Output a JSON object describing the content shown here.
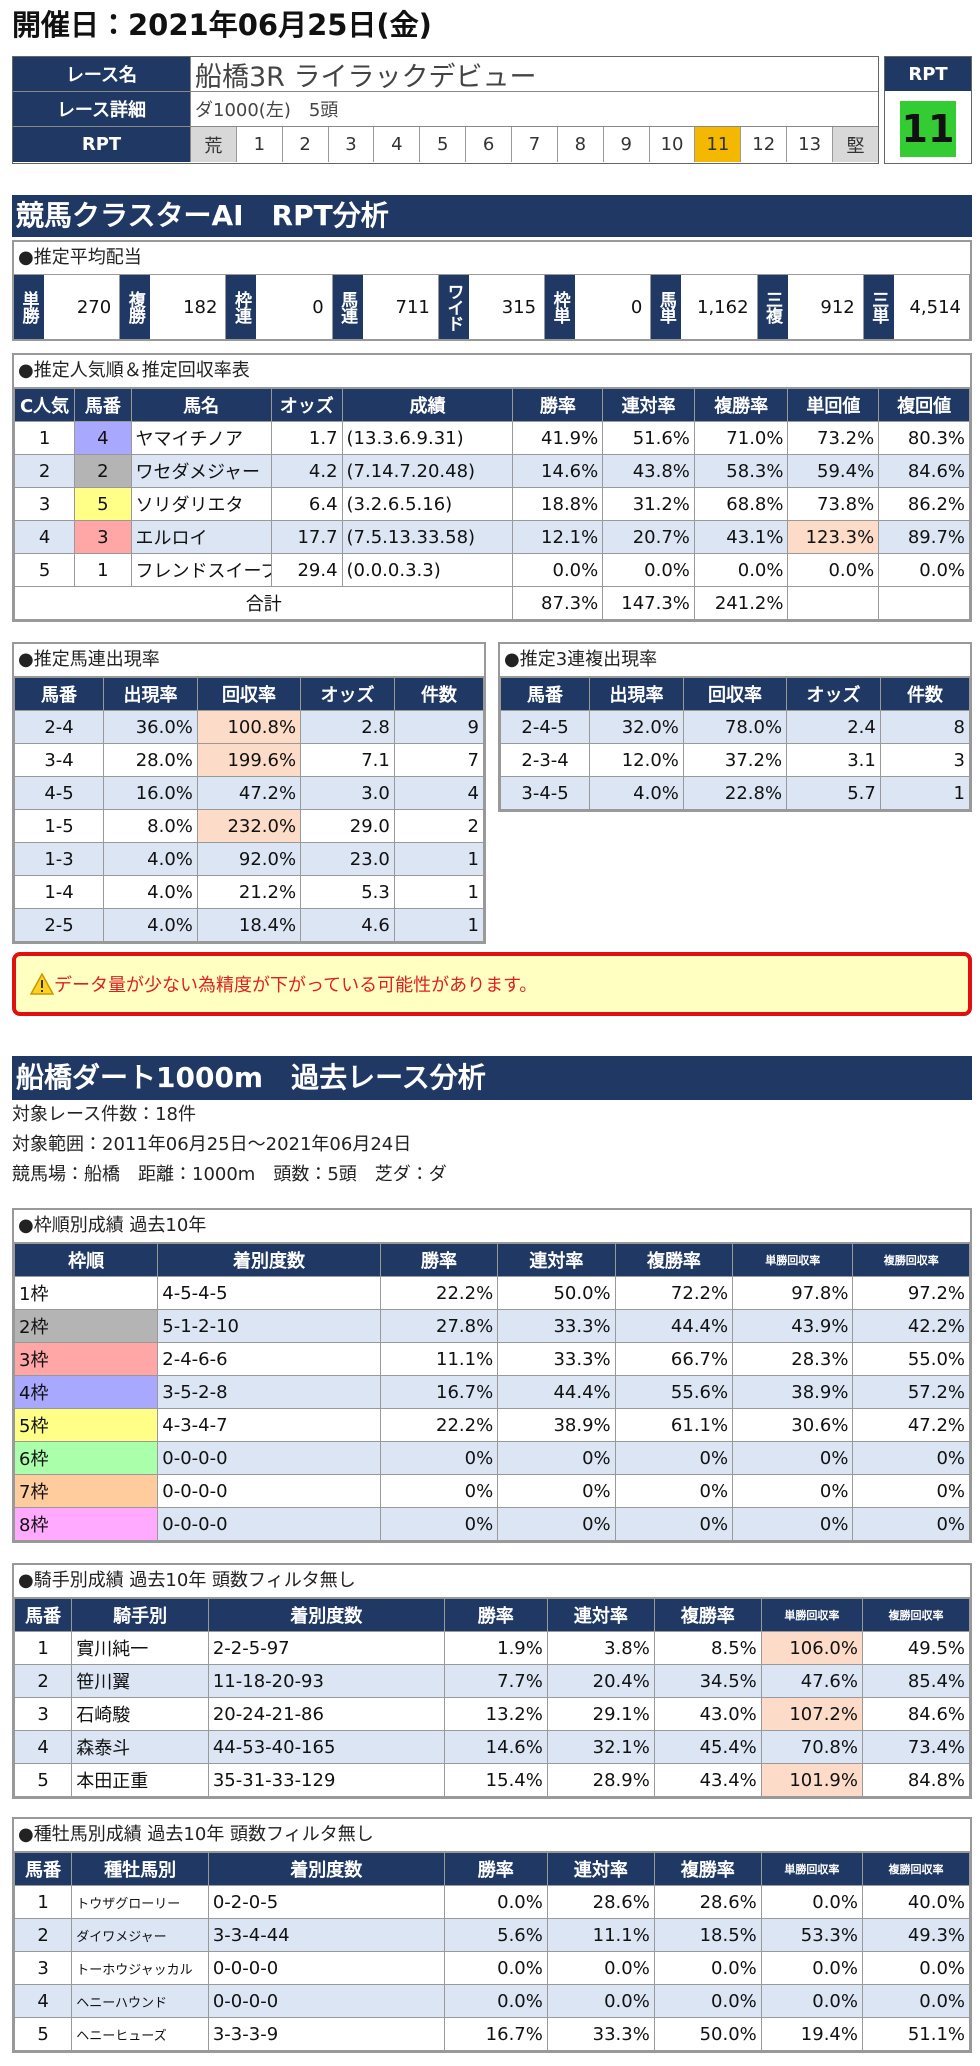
{
  "header": {
    "date": "開催日：2021年06月25日(金)"
  },
  "race": {
    "labels": [
      "レース名",
      "レース詳細",
      "RPT"
    ],
    "name": "船橋3R ライラックデビュー",
    "detail": "ダ1000(左)　5頭",
    "rpt_scale": [
      "荒",
      "1",
      "2",
      "3",
      "4",
      "5",
      "6",
      "7",
      "8",
      "9",
      "10",
      "11",
      "12",
      "13",
      "堅"
    ],
    "rpt_title": "RPT",
    "rpt_value": "11"
  },
  "ai": {
    "title": "競馬クラスターAI　RPT分析",
    "payout": {
      "heading": "●推定平均配当",
      "items": [
        {
          "label": "単勝",
          "value": "270"
        },
        {
          "label": "複勝",
          "value": "182"
        },
        {
          "label": "枠連",
          "value": "0"
        },
        {
          "label": "馬連",
          "value": "711"
        },
        {
          "label": "ワイド",
          "value": "315"
        },
        {
          "label": "枠単",
          "value": "0"
        },
        {
          "label": "馬単",
          "value": "1,162"
        },
        {
          "label": "三複",
          "value": "912"
        },
        {
          "label": "三単",
          "value": "4,514"
        }
      ]
    },
    "popularity": {
      "heading": "●推定人気順＆推定回収率表",
      "columns": [
        "C人気",
        "馬番",
        "馬名",
        "オッズ",
        "成績",
        "勝率",
        "連対率",
        "複勝率",
        "単回値",
        "複回値"
      ],
      "rows": [
        [
          "1",
          "4",
          "ヤマイチノア",
          "1.7",
          "(13.3.6.9.31)",
          "41.9%",
          "51.6%",
          "71.0%",
          "73.2%",
          "80.3%"
        ],
        [
          "2",
          "2",
          "ワセダメジャー",
          "4.2",
          "(7.14.7.20.48)",
          "14.6%",
          "43.8%",
          "58.3%",
          "59.4%",
          "84.6%"
        ],
        [
          "3",
          "5",
          "ソリダリエタ",
          "6.4",
          "(3.2.6.5.16)",
          "18.8%",
          "31.2%",
          "68.8%",
          "73.8%",
          "86.2%"
        ],
        [
          "4",
          "3",
          "エルロイ",
          "17.7",
          "(7.5.13.33.58)",
          "12.1%",
          "20.7%",
          "43.1%",
          "123.3%",
          "89.7%"
        ],
        [
          "5",
          "1",
          "フレンドスイープ",
          "29.4",
          "(0.0.0.3.3)",
          "0.0%",
          "0.0%",
          "0.0%",
          "0.0%",
          "0.0%"
        ]
      ],
      "total": {
        "label": "合計",
        "values": [
          "87.3%",
          "147.3%",
          "241.2%"
        ]
      }
    },
    "umaren": {
      "heading": "●推定馬連出現率",
      "columns": [
        "馬番",
        "出現率",
        "回収率",
        "オッズ",
        "件数"
      ],
      "rows": [
        [
          "2-4",
          "36.0%",
          "100.8%",
          "2.8",
          "9"
        ],
        [
          "3-4",
          "28.0%",
          "199.6%",
          "7.1",
          "7"
        ],
        [
          "4-5",
          "16.0%",
          "47.2%",
          "3.0",
          "4"
        ],
        [
          "1-5",
          "8.0%",
          "232.0%",
          "29.0",
          "2"
        ],
        [
          "1-3",
          "4.0%",
          "92.0%",
          "23.0",
          "1"
        ],
        [
          "1-4",
          "4.0%",
          "21.2%",
          "5.3",
          "1"
        ],
        [
          "2-5",
          "4.0%",
          "18.4%",
          "4.6",
          "1"
        ]
      ]
    },
    "sanrenpuku": {
      "heading": "●推定3連複出現率",
      "columns": [
        "馬番",
        "出現率",
        "回収率",
        "オッズ",
        "件数"
      ],
      "rows": [
        [
          "2-4-5",
          "32.0%",
          "78.0%",
          "2.4",
          "8"
        ],
        [
          "2-3-4",
          "12.0%",
          "37.2%",
          "3.1",
          "3"
        ],
        [
          "3-4-5",
          "4.0%",
          "22.8%",
          "5.7",
          "1"
        ]
      ]
    },
    "warning": "データ量が少ない為精度が下がっている可能性があります。"
  },
  "past": {
    "title": "船橋ダート1000m　過去レース分析",
    "info": [
      "対象レース件数：18件",
      "対象範囲：2011年06月25日～2021年06月24日",
      "競馬場：船橋　距離：1000m　頭数：5頭　芝ダ：ダ"
    ],
    "frame": {
      "heading": "●枠順別成績 過去10年",
      "columns": [
        "枠順",
        "着別度数",
        "勝率",
        "連対率",
        "複勝率",
        "単勝回収率",
        "複勝回収率"
      ],
      "rows": [
        [
          "1枠",
          "4-5-4-5",
          "22.2%",
          "50.0%",
          "72.2%",
          "97.8%",
          "97.2%"
        ],
        [
          "2枠",
          "5-1-2-10",
          "27.8%",
          "33.3%",
          "44.4%",
          "43.9%",
          "42.2%"
        ],
        [
          "3枠",
          "2-4-6-6",
          "11.1%",
          "33.3%",
          "66.7%",
          "28.3%",
          "55.0%"
        ],
        [
          "4枠",
          "3-5-2-8",
          "16.7%",
          "44.4%",
          "55.6%",
          "38.9%",
          "57.2%"
        ],
        [
          "5枠",
          "4-3-4-7",
          "22.2%",
          "38.9%",
          "61.1%",
          "30.6%",
          "47.2%"
        ],
        [
          "6枠",
          "0-0-0-0",
          "0%",
          "0%",
          "0%",
          "0%",
          "0%"
        ],
        [
          "7枠",
          "0-0-0-0",
          "0%",
          "0%",
          "0%",
          "0%",
          "0%"
        ],
        [
          "8枠",
          "0-0-0-0",
          "0%",
          "0%",
          "0%",
          "0%",
          "0%"
        ]
      ]
    },
    "jockey": {
      "heading": "●騎手別成績 過去10年 頭数フィルタ無し",
      "columns": [
        "馬番",
        "騎手別",
        "着別度数",
        "勝率",
        "連対率",
        "複勝率",
        "単勝回収率",
        "複勝回収率"
      ],
      "rows": [
        [
          "1",
          "實川純一",
          "2-2-5-97",
          "1.9%",
          "3.8%",
          "8.5%",
          "106.0%",
          "49.5%"
        ],
        [
          "2",
          "笹川翼",
          "11-18-20-93",
          "7.7%",
          "20.4%",
          "34.5%",
          "47.6%",
          "85.4%"
        ],
        [
          "3",
          "石崎駿",
          "20-24-21-86",
          "13.2%",
          "29.1%",
          "43.0%",
          "107.2%",
          "84.6%"
        ],
        [
          "4",
          "森泰斗",
          "44-53-40-165",
          "14.6%",
          "32.1%",
          "45.4%",
          "70.8%",
          "73.4%"
        ],
        [
          "5",
          "本田正重",
          "35-31-33-129",
          "15.4%",
          "28.9%",
          "43.4%",
          "101.9%",
          "84.8%"
        ]
      ]
    },
    "sire": {
      "heading": "●種牡馬別成績 過去10年 頭数フィルタ無し",
      "columns": [
        "馬番",
        "種牡馬別",
        "着別度数",
        "勝率",
        "連対率",
        "複勝率",
        "単勝回収率",
        "複勝回収率"
      ],
      "rows": [
        [
          "1",
          "トウザグローリー",
          "0-2-0-5",
          "0.0%",
          "28.6%",
          "28.6%",
          "0.0%",
          "40.0%"
        ],
        [
          "2",
          "ダイワメジャー",
          "3-3-4-44",
          "5.6%",
          "11.1%",
          "18.5%",
          "53.3%",
          "49.3%"
        ],
        [
          "3",
          "トーホウジャッカル",
          "0-0-0-0",
          "0.0%",
          "0.0%",
          "0.0%",
          "0.0%",
          "0.0%"
        ],
        [
          "4",
          "ヘニーハウンド",
          "0-0-0-0",
          "0.0%",
          "0.0%",
          "0.0%",
          "0.0%",
          "0.0%"
        ],
        [
          "5",
          "ヘニーヒューズ",
          "3-3-3-9",
          "16.7%",
          "33.3%",
          "50.0%",
          "19.4%",
          "51.1%"
        ]
      ]
    }
  }
}
